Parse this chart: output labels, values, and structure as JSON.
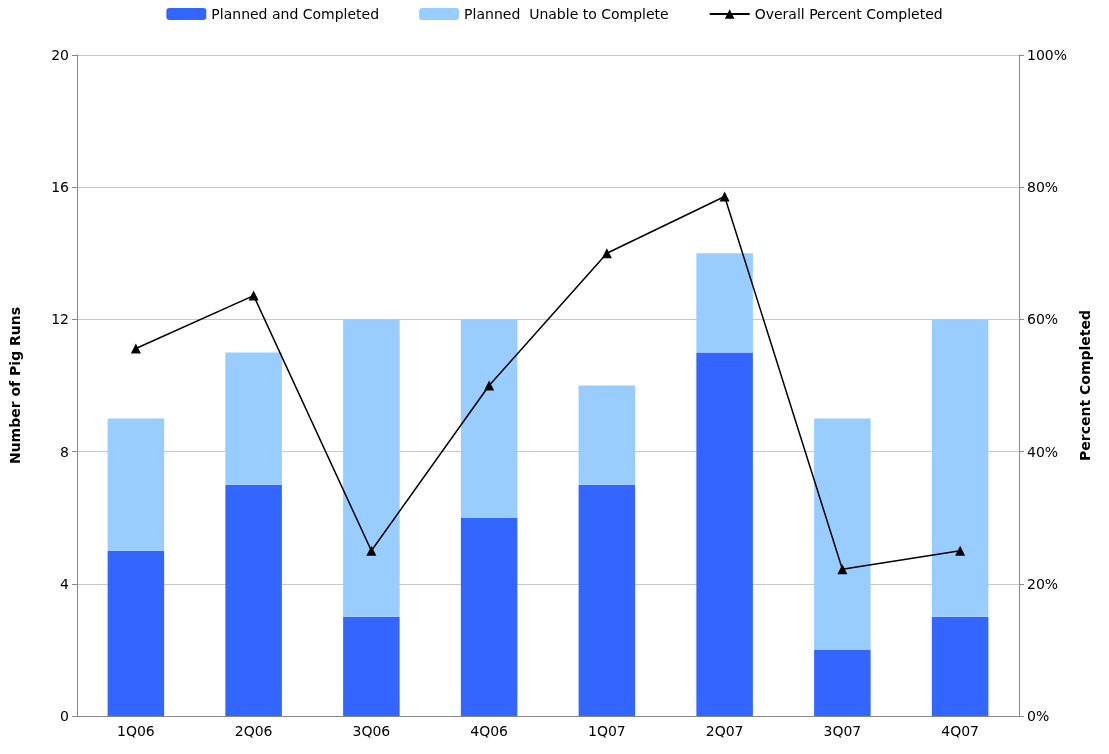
{
  "chart_data": {
    "type": "bar",
    "stacked": true,
    "categories": [
      "1Q06",
      "2Q06",
      "3Q06",
      "4Q06",
      "1Q07",
      "2Q07",
      "3Q07",
      "4Q07"
    ],
    "series": [
      {
        "name": "Planned and Completed",
        "color": "#3366ff",
        "values": [
          5,
          7,
          3,
          6,
          7,
          11,
          2,
          3
        ]
      },
      {
        "name": "Planned  Unable to Complete",
        "color": "#99ccff",
        "values": [
          4,
          4,
          9,
          6,
          3,
          3,
          7,
          9
        ]
      },
      {
        "name": "Overall Percent Completed",
        "type": "line",
        "axis": "y2",
        "color": "#000000",
        "marker": "triangle",
        "values": [
          55.6,
          63.6,
          25,
          50,
          70,
          78.6,
          22.2,
          25
        ]
      }
    ],
    "ylabel": "Number of Pig Runs",
    "y2label": "Percent Completed",
    "ylim": [
      0,
      20
    ],
    "yticks": [
      0,
      4,
      8,
      12,
      16,
      20
    ],
    "y2lim": [
      0,
      100
    ],
    "y2ticks": [
      {
        "value": 0,
        "label": "0%"
      },
      {
        "value": 20,
        "label": "20%"
      },
      {
        "value": 40,
        "label": "40%"
      },
      {
        "value": 60,
        "label": "60%"
      },
      {
        "value": 80,
        "label": "80%"
      },
      {
        "value": 100,
        "label": "100%"
      }
    ],
    "grid": "y",
    "legend": "top"
  }
}
